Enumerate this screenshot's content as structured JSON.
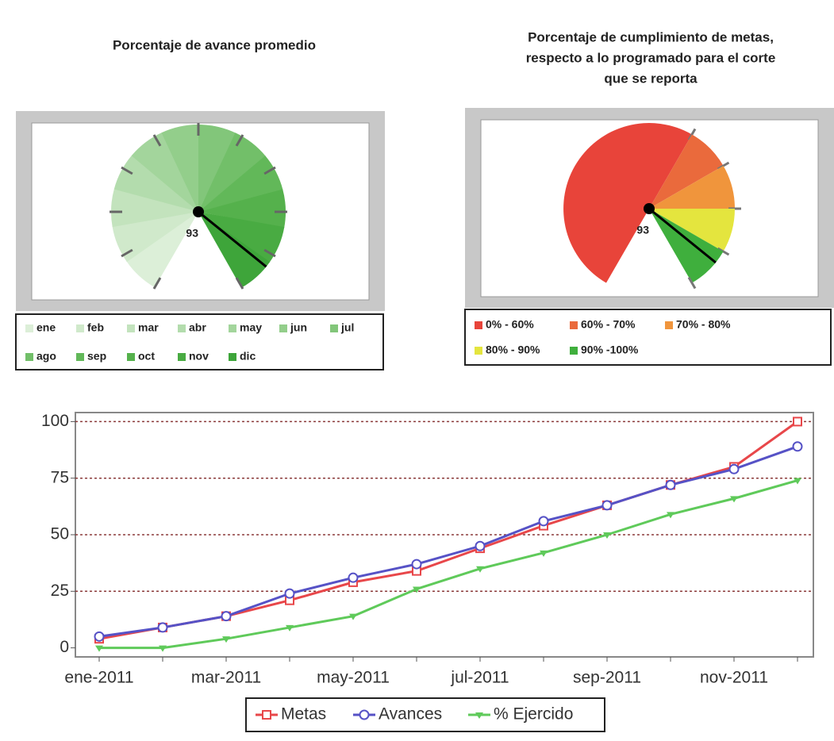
{
  "chart_data": [
    {
      "type": "gauge",
      "title": [
        "Porcentaje de avance promedio"
      ],
      "value": 93,
      "ylim": [
        0,
        100
      ],
      "yticks": [
        0,
        10,
        20,
        30,
        40,
        50,
        60,
        70,
        80,
        90,
        100
      ],
      "categories": [
        "ene",
        "feb",
        "mar",
        "abr",
        "may",
        "jun",
        "jul",
        "ago",
        "sep",
        "oct",
        "nov",
        "dic"
      ],
      "colors": [
        "#dcefd8",
        "#d0e9cb",
        "#c3e3bd",
        "#b3dcad",
        "#a3d59c",
        "#93ce8b",
        "#82c67a",
        "#72bf69",
        "#62b859",
        "#55b14c",
        "#49ab42",
        "#3ea53a"
      ]
    },
    {
      "type": "gauge",
      "title": [
        "Porcentaje de cumplimiento de metas,",
        "respecto a lo programado para el corte",
        "que se reporta"
      ],
      "value": 93,
      "ylim": [
        0,
        100
      ],
      "bands": [
        {
          "name": "0% - 60%",
          "range": [
            0,
            60
          ],
          "color": "#e8443a"
        },
        {
          "name": "60% - 70%",
          "range": [
            60,
            70
          ],
          "color": "#ea6a3c"
        },
        {
          "name": "70% - 80%",
          "range": [
            70,
            80
          ],
          "color": "#f0953c"
        },
        {
          "name": "80% - 90%",
          "range": [
            80,
            90
          ],
          "color": "#e4e53e"
        },
        {
          "name": "90% -100%",
          "range": [
            90,
            100
          ],
          "color": "#3faf3d"
        }
      ]
    },
    {
      "type": "line",
      "categories": [
        "ene-2011",
        null,
        "mar-2011",
        null,
        "may-2011",
        null,
        "jul-2011",
        null,
        "sep-2011",
        null,
        "nov-2011",
        null
      ],
      "ylim": [
        -4,
        104
      ],
      "yticks": [
        0,
        25,
        50,
        75,
        100
      ],
      "grid": true,
      "series": [
        {
          "name": "Metas",
          "color": "#e8474a",
          "marker": "square",
          "values": [
            4,
            9,
            14,
            21,
            29,
            34,
            44,
            54,
            63,
            72,
            80,
            100
          ]
        },
        {
          "name": "Avances",
          "color": "#5652c6",
          "marker": "circle",
          "values": [
            5,
            9,
            14,
            24,
            31,
            37,
            45,
            56,
            63,
            72,
            79,
            89
          ]
        },
        {
          "name": "% Ejercido",
          "color": "#5fca5a",
          "marker": "triangle",
          "values": [
            0,
            0,
            4,
            9,
            14,
            26,
            35,
            42,
            50,
            59,
            66,
            74
          ]
        }
      ]
    }
  ]
}
